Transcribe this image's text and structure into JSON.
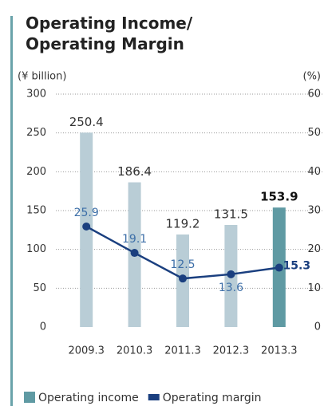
{
  "chart_data": {
    "type": "bar",
    "title": "Operating Income/ Operating Margin",
    "y_label": "(¥ billion)",
    "y2_label": "(%)",
    "categories": [
      "2009.3",
      "2010.3",
      "2011.3",
      "2012.3",
      "2013.3"
    ],
    "series": [
      {
        "name": "Operating income",
        "type": "bar",
        "color": "#5f9aa3",
        "colors": [
          "#b9cdd6",
          "#b9cdd6",
          "#b9cdd6",
          "#b9cdd6",
          "#5f9aa3"
        ],
        "values": [
          250.4,
          186.4,
          119.2,
          131.5,
          153.9
        ]
      },
      {
        "name": "Operating margin",
        "type": "line",
        "axis": "y2",
        "color": "#1a3f7f",
        "values": [
          25.9,
          19.1,
          12.5,
          13.6,
          15.3
        ]
      }
    ],
    "ylim": [
      0,
      300
    ],
    "yticks": [
      0,
      50,
      100,
      150,
      200,
      250,
      300
    ],
    "y2lim": [
      0,
      60
    ],
    "y2ticks": [
      0,
      10,
      20,
      30,
      40,
      50,
      60
    ],
    "grid": true
  }
}
